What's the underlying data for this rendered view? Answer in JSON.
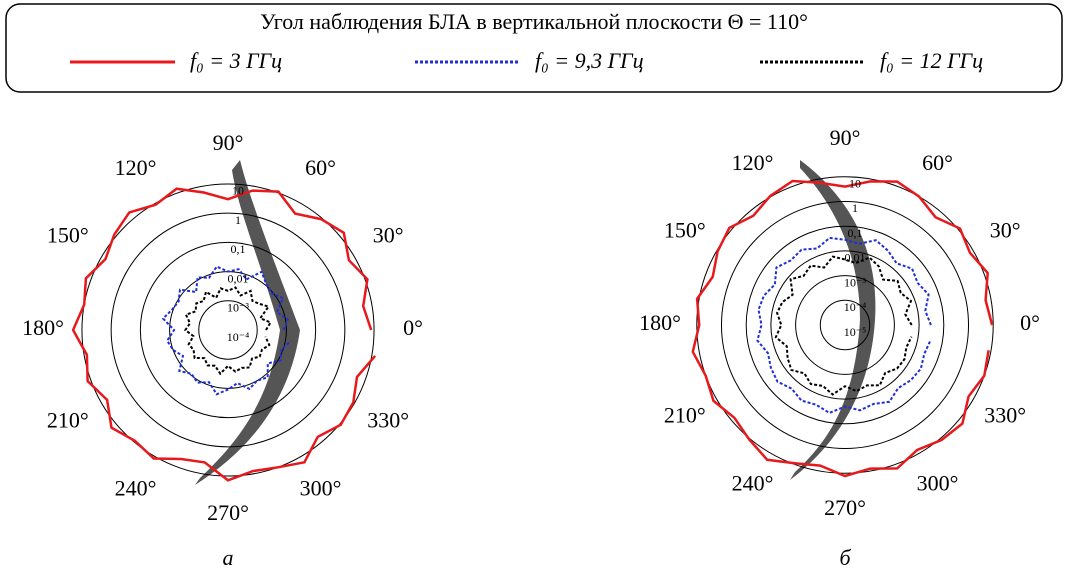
{
  "chart_data": [
    {
      "type": "polar",
      "title": "Угол наблюдения БЛА в вертикальной плоскости Θ = 110°",
      "caption": "а",
      "log_r": true,
      "theta": [
        0,
        10,
        20,
        30,
        40,
        50,
        60,
        70,
        80,
        90,
        100,
        110,
        120,
        130,
        140,
        150,
        160,
        170,
        180,
        190,
        200,
        210,
        220,
        230,
        240,
        250,
        260,
        270,
        280,
        290,
        300,
        310,
        320,
        330,
        340,
        350
      ],
      "rlim": [
        0.0001,
        30
      ],
      "rticks": [
        10,
        1,
        {
          "value": 0.1,
          "label": "0,1"
        },
        {
          "value": 0.01,
          "label": "0,01"
        },
        {
          "value": 0.001,
          "label": "10⁻³"
        },
        {
          "value": 0.0001,
          "label": "10⁻⁴"
        }
      ],
      "thetaticks": [
        {
          "value": 0,
          "label": "0°"
        },
        {
          "value": 30,
          "label": "30°"
        },
        {
          "value": 60,
          "label": "60°"
        },
        {
          "value": 90,
          "label": "90°"
        },
        {
          "value": 120,
          "label": "120°"
        },
        {
          "value": 150,
          "label": "150°"
        },
        {
          "value": 180,
          "label": "180°"
        },
        {
          "value": 210,
          "label": "210°"
        },
        {
          "value": 240,
          "label": "240°"
        },
        {
          "value": 270,
          "label": "270°"
        },
        {
          "value": 300,
          "label": "300°"
        },
        {
          "value": 330,
          "label": "330°"
        }
      ],
      "series": [
        {
          "name": "f₀ = 3 ГГц",
          "color": "#e8191c",
          "style": "solid",
          "values": [
            8,
            5,
            12,
            6,
            15,
            9,
            4,
            11,
            7,
            3,
            6,
            14,
            9,
            18,
            12,
            7,
            15,
            10,
            20,
            8,
            13,
            6,
            16,
            9,
            12,
            5,
            4,
            14,
            8,
            10,
            17,
            6,
            11,
            9,
            5,
            13
          ]
        },
        {
          "name": "f₀ = 9,3 ГГц",
          "color": "#1f2fd6",
          "style": "dotted",
          "values": [
            0.008,
            0.012,
            0.006,
            0.015,
            0.009,
            0.011,
            0.02,
            0.007,
            0.013,
            0.01,
            0.016,
            0.008,
            0.012,
            0.005,
            0.014,
            0.009,
            0.011,
            0.018,
            0.007,
            0.013,
            0.01,
            0.006,
            0.015,
            0.009,
            0.012,
            0.008,
            0.017,
            0.011,
            0.007,
            0.014,
            0.01,
            0.013,
            0.006,
            0.012,
            0.009,
            0.015
          ]
        },
        {
          "name": "f₀ = 12 ГГц",
          "color": "#000000",
          "style": "dotted",
          "values": [
            0.002,
            0.003,
            0.0015,
            0.004,
            0.0025,
            0.002,
            0.0035,
            0.0018,
            0.003,
            0.0022,
            0.0028,
            0.0015,
            0.0032,
            0.002,
            0.0026,
            0.0019,
            0.0034,
            0.0021,
            0.0029,
            0.0016,
            0.0027,
            0.0023,
            0.0031,
            0.0018,
            0.0025,
            0.002,
            0.0033,
            0.0017,
            0.0028,
            0.0024,
            0.003,
            0.0019,
            0.0026,
            0.0022,
            0.0032,
            0.002
          ]
        }
      ]
    },
    {
      "type": "polar",
      "caption": "б",
      "log_r": true,
      "theta": [
        0,
        10,
        20,
        30,
        40,
        50,
        60,
        70,
        80,
        90,
        100,
        110,
        120,
        130,
        140,
        150,
        160,
        170,
        180,
        190,
        200,
        210,
        220,
        230,
        240,
        250,
        260,
        270,
        280,
        290,
        300,
        310,
        320,
        330,
        340,
        350
      ],
      "rlim": [
        1e-05,
        30
      ],
      "rticks": [
        10,
        1,
        {
          "value": 0.1,
          "label": "0,1"
        },
        {
          "value": 0.01,
          "label": "0,01"
        },
        {
          "value": 0.001,
          "label": "10⁻³"
        },
        {
          "value": 0.0001,
          "label": "10⁻⁴"
        },
        {
          "value": 1e-05,
          "label": "10⁻⁵"
        }
      ],
      "thetaticks": [
        {
          "value": 0,
          "label": "0°"
        },
        {
          "value": 30,
          "label": "30°"
        },
        {
          "value": 60,
          "label": "60°"
        },
        {
          "value": 90,
          "label": "90°"
        },
        {
          "value": 120,
          "label": "120°"
        },
        {
          "value": 150,
          "label": "150°"
        },
        {
          "value": 180,
          "label": "180°"
        },
        {
          "value": 210,
          "label": "210°"
        },
        {
          "value": 240,
          "label": "240°"
        },
        {
          "value": 270,
          "label": "270°"
        },
        {
          "value": 300,
          "label": "300°"
        },
        {
          "value": 330,
          "label": "330°"
        }
      ],
      "series": [
        {
          "color": "#e8191c",
          "style": "solid",
          "values": [
            9,
            6,
            14,
            7,
            12,
            5,
            10,
            15,
            8,
            4,
            7,
            16,
            11,
            6,
            13,
            9,
            5,
            12,
            8,
            18,
            10,
            14,
            7,
            11,
            20,
            9,
            6,
            13,
            8,
            15,
            7,
            12,
            16,
            6,
            10,
            8
          ]
        },
        {
          "color": "#1f2fd6",
          "style": "dotted",
          "values": [
            0.03,
            0.02,
            0.04,
            0.025,
            0.035,
            0.018,
            0.03,
            0.045,
            0.022,
            0.028,
            0.038,
            0.02,
            0.033,
            0.026,
            0.042,
            0.019,
            0.031,
            0.036,
            0.024,
            0.04,
            0.021,
            0.029,
            0.037,
            0.023,
            0.034,
            0.027,
            0.041,
            0.02,
            0.032,
            0.025,
            0.039,
            0.022,
            0.03,
            0.035,
            0.026,
            0.033
          ]
        },
        {
          "color": "#000000",
          "style": "dotted",
          "values": [
            0.005,
            0.003,
            0.007,
            0.004,
            0.006,
            0.0025,
            0.0055,
            0.008,
            0.0035,
            0.0045,
            0.0065,
            0.003,
            0.006,
            0.004,
            0.0075,
            0.0028,
            0.005,
            0.0062,
            0.0038,
            0.007,
            0.0032,
            0.0048,
            0.0068,
            0.0036,
            0.0058,
            0.0042,
            0.0072,
            0.003,
            0.0052,
            0.004,
            0.0066,
            0.0034,
            0.0056,
            0.006,
            0.0044,
            0.0054
          ]
        }
      ]
    }
  ]
}
